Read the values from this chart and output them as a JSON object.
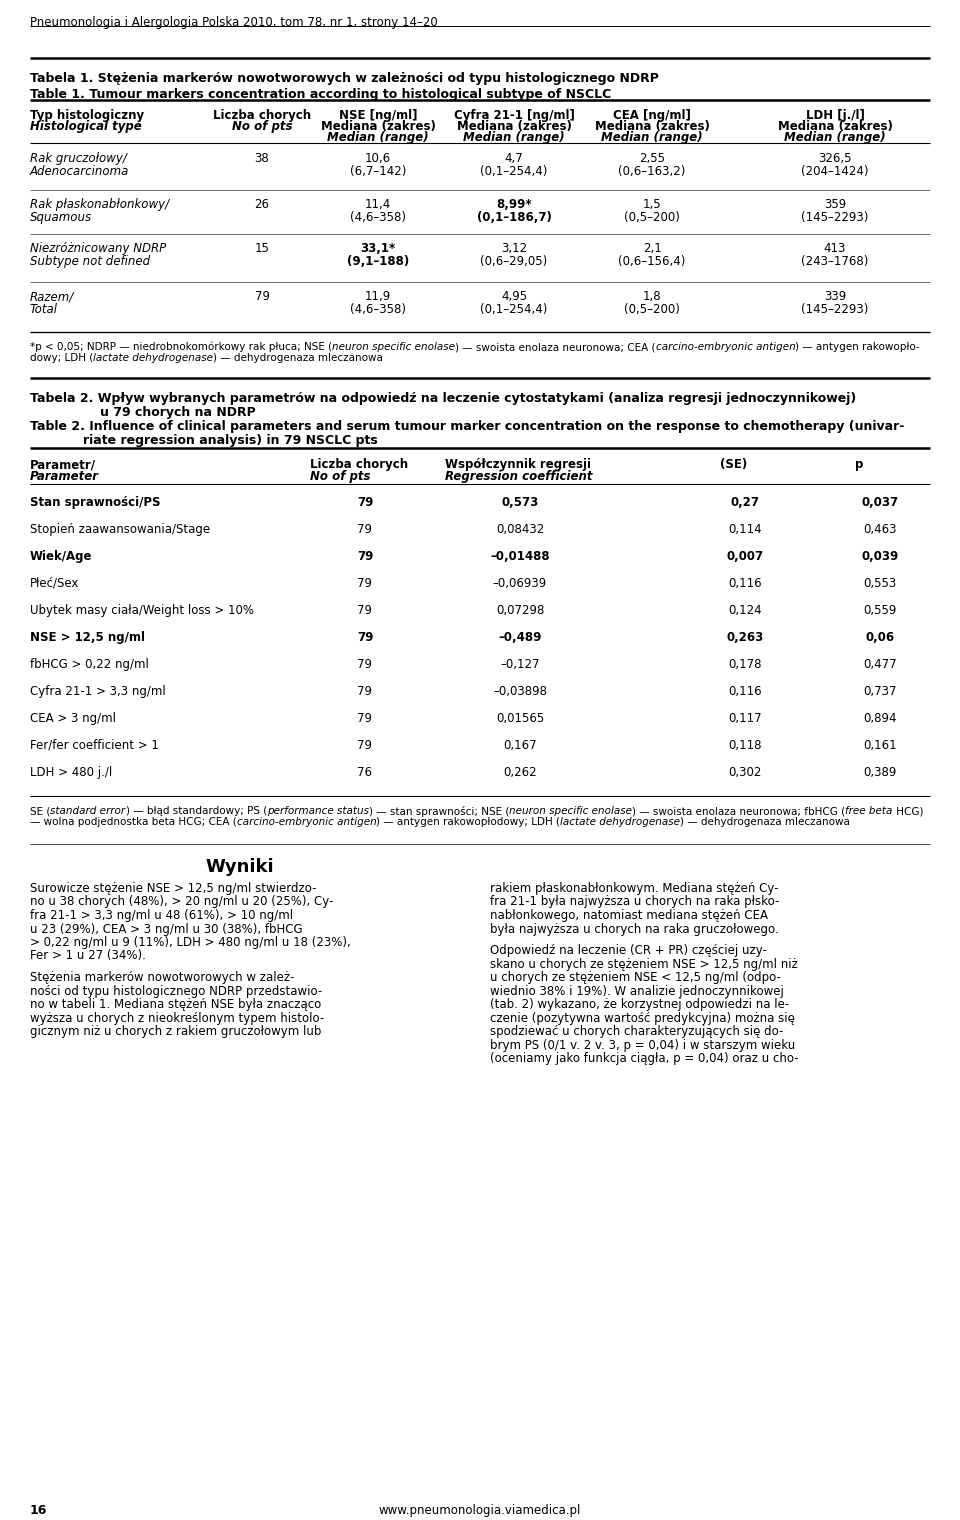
{
  "page_header": "Pneumonologia i Alergologia Polska 2010, tom 78, nr 1, strony 14–20",
  "table1_title_pl": "Tabela 1. Stężenia markerów nowotworowych w zależności od typu histologicznego NDRP",
  "table1_title_en": "Table 1. Tumour markers concentration according to histological subtype of NSCLC",
  "table2_title_pl1": "Tabela 2. Wpływ wybranych parametrów na odpowiedź na leczenie cytostatykami (analiza regresji jednoczynnikowej)",
  "table2_title_pl2": "u 79 chorych na NDRP",
  "table2_title_en1": "Table 2. Influence of clinical parameters and serum tumour marker concentration on the response to chemotherapy (univar-",
  "table2_title_en2": "    iate regression analysis) in 79 NSCLC pts",
  "table1_rows": [
    {
      "name_pl": "Rak gruczołowy/",
      "name_en": "Adenocarcinoma",
      "n": "38",
      "nse": "10,6",
      "nse_range": "(6,7–142)",
      "cyfra": "4,7",
      "cyfra_range": "(0,1–254,4)",
      "cea": "2,55",
      "cea_range": "(0,6–163,2)",
      "ldh": "326,5",
      "ldh_range": "(204–1424)",
      "bold_nse": false,
      "bold_cyfra": false
    },
    {
      "name_pl": "Rak płaskonabłonkowy/",
      "name_en": "Squamous",
      "n": "26",
      "nse": "11,4",
      "nse_range": "(4,6–358)",
      "cyfra": "8,99*",
      "cyfra_range": "(0,1–186,7)",
      "cea": "1,5",
      "cea_range": "(0,5–200)",
      "ldh": "359",
      "ldh_range": "(145–2293)",
      "bold_nse": false,
      "bold_cyfra": true
    },
    {
      "name_pl": "Niezróżnicowany NDRP",
      "name_en": "Subtype not defined",
      "n": "15",
      "nse": "33,1*",
      "nse_range": "(9,1–188)",
      "cyfra": "3,12",
      "cyfra_range": "(0,6–29,05)",
      "cea": "2,1",
      "cea_range": "(0,6–156,4)",
      "ldh": "413",
      "ldh_range": "(243–1768)",
      "bold_nse": true,
      "bold_cyfra": false
    },
    {
      "name_pl": "Razem/",
      "name_en": "Total",
      "n": "79",
      "nse": "11,9",
      "nse_range": "(4,6–358)",
      "cyfra": "4,95",
      "cyfra_range": "(0,1–254,4)",
      "cea": "1,8",
      "cea_range": "(0,5–200)",
      "ldh": "339",
      "ldh_range": "(145–2293)",
      "bold_nse": false,
      "bold_cyfra": false
    }
  ],
  "table2_rows": [
    {
      "param": "Stan sprawności/PS",
      "n": "79",
      "coef": "0,573",
      "se": "0,27",
      "p": "0,037",
      "bold": true
    },
    {
      "param": "Stopień zaawansowania/Stage",
      "n": "79",
      "coef": "0,08432",
      "se": "0,114",
      "p": "0,463",
      "bold": false
    },
    {
      "param": "Wiek/Age",
      "n": "79",
      "coef": "–0,01488",
      "se": "0,007",
      "p": "0,039",
      "bold": true
    },
    {
      "param": "Płeć/Sex",
      "n": "79",
      "coef": "–0,06939",
      "se": "0,116",
      "p": "0,553",
      "bold": false
    },
    {
      "param": "Ubytek masy ciała/Weight loss > 10%",
      "n": "79",
      "coef": "0,07298",
      "se": "0,124",
      "p": "0,559",
      "bold": false
    },
    {
      "param": "NSE > 12,5 ng/ml",
      "n": "79",
      "coef": "–0,489",
      "se": "0,263",
      "p": "0,06",
      "bold": true
    },
    {
      "param": "fbHCG > 0,22 ng/ml",
      "n": "79",
      "coef": "–0,127",
      "se": "0,178",
      "p": "0,477",
      "bold": false
    },
    {
      "param": "Cyfra 21-1 > 3,3 ng/ml",
      "n": "79",
      "coef": "–0,03898",
      "se": "0,116",
      "p": "0,737",
      "bold": false
    },
    {
      "param": "CEA > 3 ng/ml",
      "n": "79",
      "coef": "0,01565",
      "se": "0,117",
      "p": "0,894",
      "bold": false
    },
    {
      "param": "Fer/fer coefficient > 1",
      "n": "79",
      "coef": "0,167",
      "se": "0,118",
      "p": "0,161",
      "bold": false
    },
    {
      "param": "LDH > 480 j./l",
      "n": "76",
      "coef": "0,262",
      "se": "0,302",
      "p": "0,389",
      "bold": false
    }
  ],
  "wyniki_left_lines": [
    "Surowicze stężenie NSE > 12,5 ng/ml stwierdzo-",
    "no u 38 chorych (48%), > 20 ng/ml u 20 (25%), Cy-",
    "fra 21-1 > 3,3 ng/ml u 48 (61%), > 10 ng/ml",
    "u 23 (29%), CEA > 3 ng/ml u 30 (38%), fbHCG",
    "> 0,22 ng/ml u 9 (11%), LDH > 480 ng/ml u 18 (23%),",
    "Fer > 1 u 27 (34%).",
    "",
    "Stężenia markerów nowotworowych w zależ-",
    "ności od typu histologicznego NDRP przedstawio-",
    "no w tabeli 1. Mediana stężeń NSE była znacząco",
    "wyższa u chorych z nieokreślonym typem histolo-",
    "gicznym niż u chorych z rakiem gruczołowym lub"
  ],
  "wyniki_right_lines": [
    "rakiem płaskonabłonkowym. Mediana stężeń Cy-",
    "fra 21-1 była najwyższa u chorych na raka płsko-",
    "nabłonkowego, natomiast mediana stężeń CEA",
    "była najwyższa u chorych na raka gruczołowego.",
    "",
    "Odpowiedź na leczenie (CR + PR) częściej uzy-",
    "skano u chorych ze stężeniem NSE > 12,5 ng/ml niż",
    "u chorych ze stężeniem NSE < 12,5 ng/ml (odpo-",
    "wiednio 38% i 19%). W analizie jednoczynnikowej",
    "(tab. 2) wykazano, że korzystnej odpowiedzi na le-",
    "czenie (pozytywna wartość predykcyjna) można się",
    "spodziewać u chorych charakteryzujących się do-",
    "brym PS (0/1 v. 2 v. 3, p = 0,04) i w starszym wieku",
    "(oceniamy jako funkcja ciągła, p = 0,04) oraz u cho-"
  ]
}
